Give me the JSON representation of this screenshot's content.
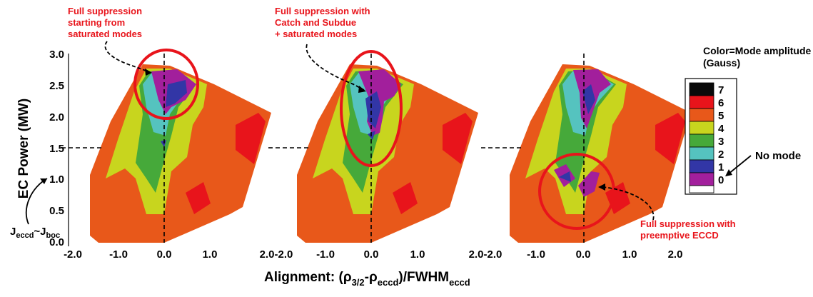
{
  "chart_data": {
    "type": "contour",
    "ylabel": "EC Power (MW)",
    "xlabel_parts": {
      "main": "Alignment: (ρ",
      "sub1": "3/2",
      "mid": "-ρ",
      "sub2": "eccd",
      "tail": ")/FWHM",
      "sub3": "eccd"
    },
    "y_ticks": [
      "0.0",
      "0.5",
      "1.0",
      "1.5",
      "2.0",
      "2.5",
      "3.0"
    ],
    "ylim": [
      0.0,
      3.0
    ],
    "xlim": [
      -2.0,
      2.0
    ],
    "x_ticks": [
      "-2.0",
      "-1.0",
      "0.0",
      "1.0",
      "2.0"
    ],
    "x_tick_labels_panel1": [
      "-2.0",
      "-1.0",
      "0.0",
      "1.0",
      "2.0-2.0"
    ],
    "x_tick_labels_panel2": [
      "-1.0",
      "0.0",
      "1.0",
      "2.0-2.0"
    ],
    "x_tick_labels_panel3": [
      "-1.0",
      "0.0",
      "1.0",
      "2.0"
    ],
    "reference_lines": {
      "x": 0.0,
      "y": 1.5
    },
    "legend": {
      "title_line1": "Color=Mode amplitude",
      "title_line2": "(Gauss)",
      "levels": [
        {
          "label": "7",
          "color": "#0a0a0a"
        },
        {
          "label": "6",
          "color": "#e8141b"
        },
        {
          "label": "5",
          "color": "#e8581a"
        },
        {
          "label": "4",
          "color": "#c8d51e"
        },
        {
          "label": "3",
          "color": "#46a93a"
        },
        {
          "label": "2",
          "color": "#55c3bf"
        },
        {
          "label": "1",
          "color": "#3236a6"
        },
        {
          "label": "0",
          "color": "#a21f9c"
        }
      ],
      "no_mode_label": "No mode",
      "white_label": ""
    },
    "panels": [
      {
        "id": "p1",
        "annotation": [
          "Full suppression",
          "starting from",
          "saturated modes"
        ]
      },
      {
        "id": "p2",
        "annotation": [
          "Full suppression with",
          "Catch and Subdue",
          "+ saturated modes"
        ]
      },
      {
        "id": "p3",
        "annotation": [
          "Full suppression with",
          "preemptive ECCD"
        ]
      }
    ],
    "bottom_left_label": {
      "main1": "J",
      "sub1": "eccd",
      "tilde": "~J",
      "sub2": "boc"
    }
  },
  "colors": {
    "annotation": "#e8141b",
    "black": "#0a0a0a",
    "red": "#e8141b",
    "orange": "#e8581a",
    "yellow": "#c8d51e",
    "green": "#46a93a",
    "cyan": "#55c3bf",
    "blue": "#3236a6",
    "magenta": "#a21f9c"
  }
}
